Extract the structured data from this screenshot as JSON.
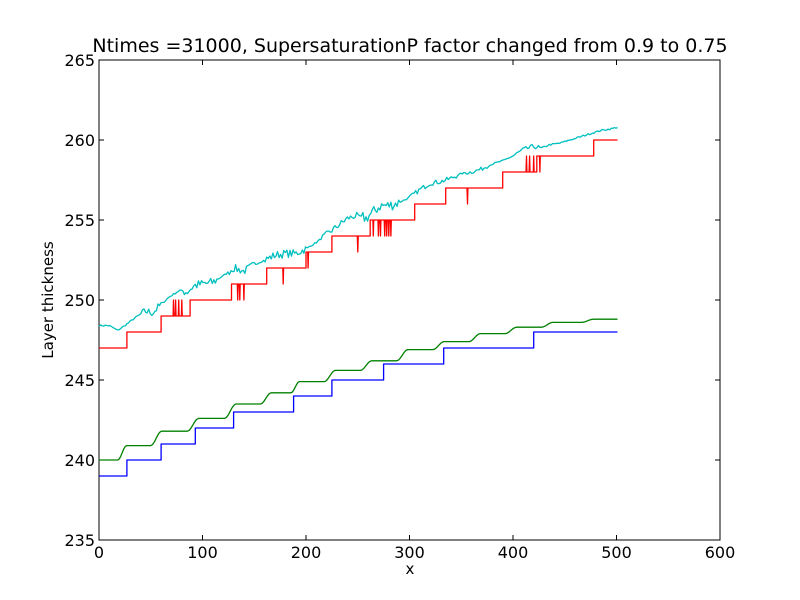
{
  "chart_data": {
    "type": "line",
    "title": "Ntimes =31000, SupersaturationP factor changed from 0.9 to 0.75",
    "xlabel": "x",
    "ylabel": "Layer thickness",
    "xlim": [
      0,
      600
    ],
    "ylim": [
      235,
      265
    ],
    "xticks": [
      "0",
      "100",
      "200",
      "300",
      "400",
      "500",
      "600"
    ],
    "yticks": [
      "235",
      "240",
      "245",
      "250",
      "255",
      "260",
      "265"
    ],
    "grid": false,
    "legend": "none",
    "series": [
      {
        "color": "#00bfbf",
        "style": "noisy",
        "points": [
          [
            0,
            248.4
          ],
          [
            10,
            248.4
          ],
          [
            18,
            248.1
          ],
          [
            25,
            248.4
          ],
          [
            35,
            248.9
          ],
          [
            45,
            249.3
          ],
          [
            52,
            249.2
          ],
          [
            58,
            249.6
          ],
          [
            68,
            250.2
          ],
          [
            78,
            250.6
          ],
          [
            85,
            250.5
          ],
          [
            92,
            250.9
          ],
          [
            100,
            251.0
          ],
          [
            110,
            251.1
          ],
          [
            122,
            251.6
          ],
          [
            130,
            252.0
          ],
          [
            140,
            251.8
          ],
          [
            150,
            252.2
          ],
          [
            160,
            252.5
          ],
          [
            170,
            252.8
          ],
          [
            180,
            252.9
          ],
          [
            190,
            252.9
          ],
          [
            200,
            253.2
          ],
          [
            210,
            253.6
          ],
          [
            220,
            254.1
          ],
          [
            230,
            254.6
          ],
          [
            240,
            255.1
          ],
          [
            250,
            255.3
          ],
          [
            258,
            255.1
          ],
          [
            265,
            255.5
          ],
          [
            272,
            255.9
          ],
          [
            280,
            255.9
          ],
          [
            290,
            256.1
          ],
          [
            300,
            256.4
          ],
          [
            310,
            256.9
          ],
          [
            320,
            257.3
          ],
          [
            330,
            257.4
          ],
          [
            340,
            257.6
          ],
          [
            350,
            257.9
          ],
          [
            360,
            258.0
          ],
          [
            370,
            258.2
          ],
          [
            380,
            258.5
          ],
          [
            390,
            258.7
          ],
          [
            400,
            259.0
          ],
          [
            410,
            259.4
          ],
          [
            420,
            259.6
          ],
          [
            428,
            259.5
          ],
          [
            435,
            259.7
          ],
          [
            445,
            259.8
          ],
          [
            455,
            260.0
          ],
          [
            465,
            260.2
          ],
          [
            475,
            260.4
          ],
          [
            485,
            260.6
          ],
          [
            495,
            260.7
          ],
          [
            501,
            260.8
          ]
        ],
        "noise_regions": [
          [
            40,
            60,
            0.25
          ],
          [
            80,
            115,
            0.3
          ],
          [
            125,
            150,
            0.25
          ],
          [
            160,
            200,
            0.25
          ],
          [
            215,
            250,
            0.2
          ],
          [
            255,
            290,
            0.35
          ],
          [
            300,
            345,
            0.15
          ],
          [
            355,
            375,
            0.12
          ],
          [
            400,
            425,
            0.15
          ]
        ]
      },
      {
        "color": "#ff0000",
        "style": "step",
        "levels": [
          [
            0,
            247
          ],
          [
            27,
            248
          ],
          [
            60,
            249
          ],
          [
            88,
            250
          ],
          [
            128,
            251
          ],
          [
            162,
            252
          ],
          [
            200,
            253
          ],
          [
            225,
            254
          ],
          [
            262,
            255
          ],
          [
            305,
            256
          ],
          [
            335,
            257
          ],
          [
            390,
            258
          ],
          [
            423,
            259
          ],
          [
            478,
            260
          ],
          [
            501,
            260
          ]
        ],
        "spikes": [
          [
            72,
            250
          ],
          [
            74,
            250
          ],
          [
            77,
            250
          ],
          [
            80,
            250
          ],
          [
            134,
            250
          ],
          [
            136,
            250
          ],
          [
            140,
            250
          ],
          [
            178,
            251
          ],
          [
            202,
            252
          ],
          [
            250,
            253
          ],
          [
            265,
            254
          ],
          [
            270,
            254
          ],
          [
            272,
            254
          ],
          [
            276,
            254
          ],
          [
            278,
            254
          ],
          [
            280,
            254
          ],
          [
            282,
            254
          ],
          [
            356,
            256
          ],
          [
            413,
            259
          ],
          [
            416,
            259
          ],
          [
            420,
            259
          ],
          [
            426,
            258
          ]
        ]
      },
      {
        "color": "#008000",
        "style": "smoothstep",
        "levels": [
          [
            0,
            240.0
          ],
          [
            28,
            240.9
          ],
          [
            62,
            241.8
          ],
          [
            98,
            242.6
          ],
          [
            134,
            243.5
          ],
          [
            168,
            244.2
          ],
          [
            195,
            244.9
          ],
          [
            230,
            245.6
          ],
          [
            265,
            246.2
          ],
          [
            300,
            246.9
          ],
          [
            335,
            247.4
          ],
          [
            370,
            247.9
          ],
          [
            405,
            248.3
          ],
          [
            440,
            248.6
          ],
          [
            480,
            248.8
          ],
          [
            501,
            248.8
          ]
        ]
      },
      {
        "color": "#0000ff",
        "style": "step",
        "levels": [
          [
            0,
            239
          ],
          [
            27,
            240
          ],
          [
            60,
            241
          ],
          [
            93,
            242
          ],
          [
            130,
            243
          ],
          [
            188,
            244
          ],
          [
            225,
            245
          ],
          [
            275,
            246
          ],
          [
            333,
            247
          ],
          [
            420,
            248
          ],
          [
            501,
            248
          ]
        ]
      }
    ]
  }
}
